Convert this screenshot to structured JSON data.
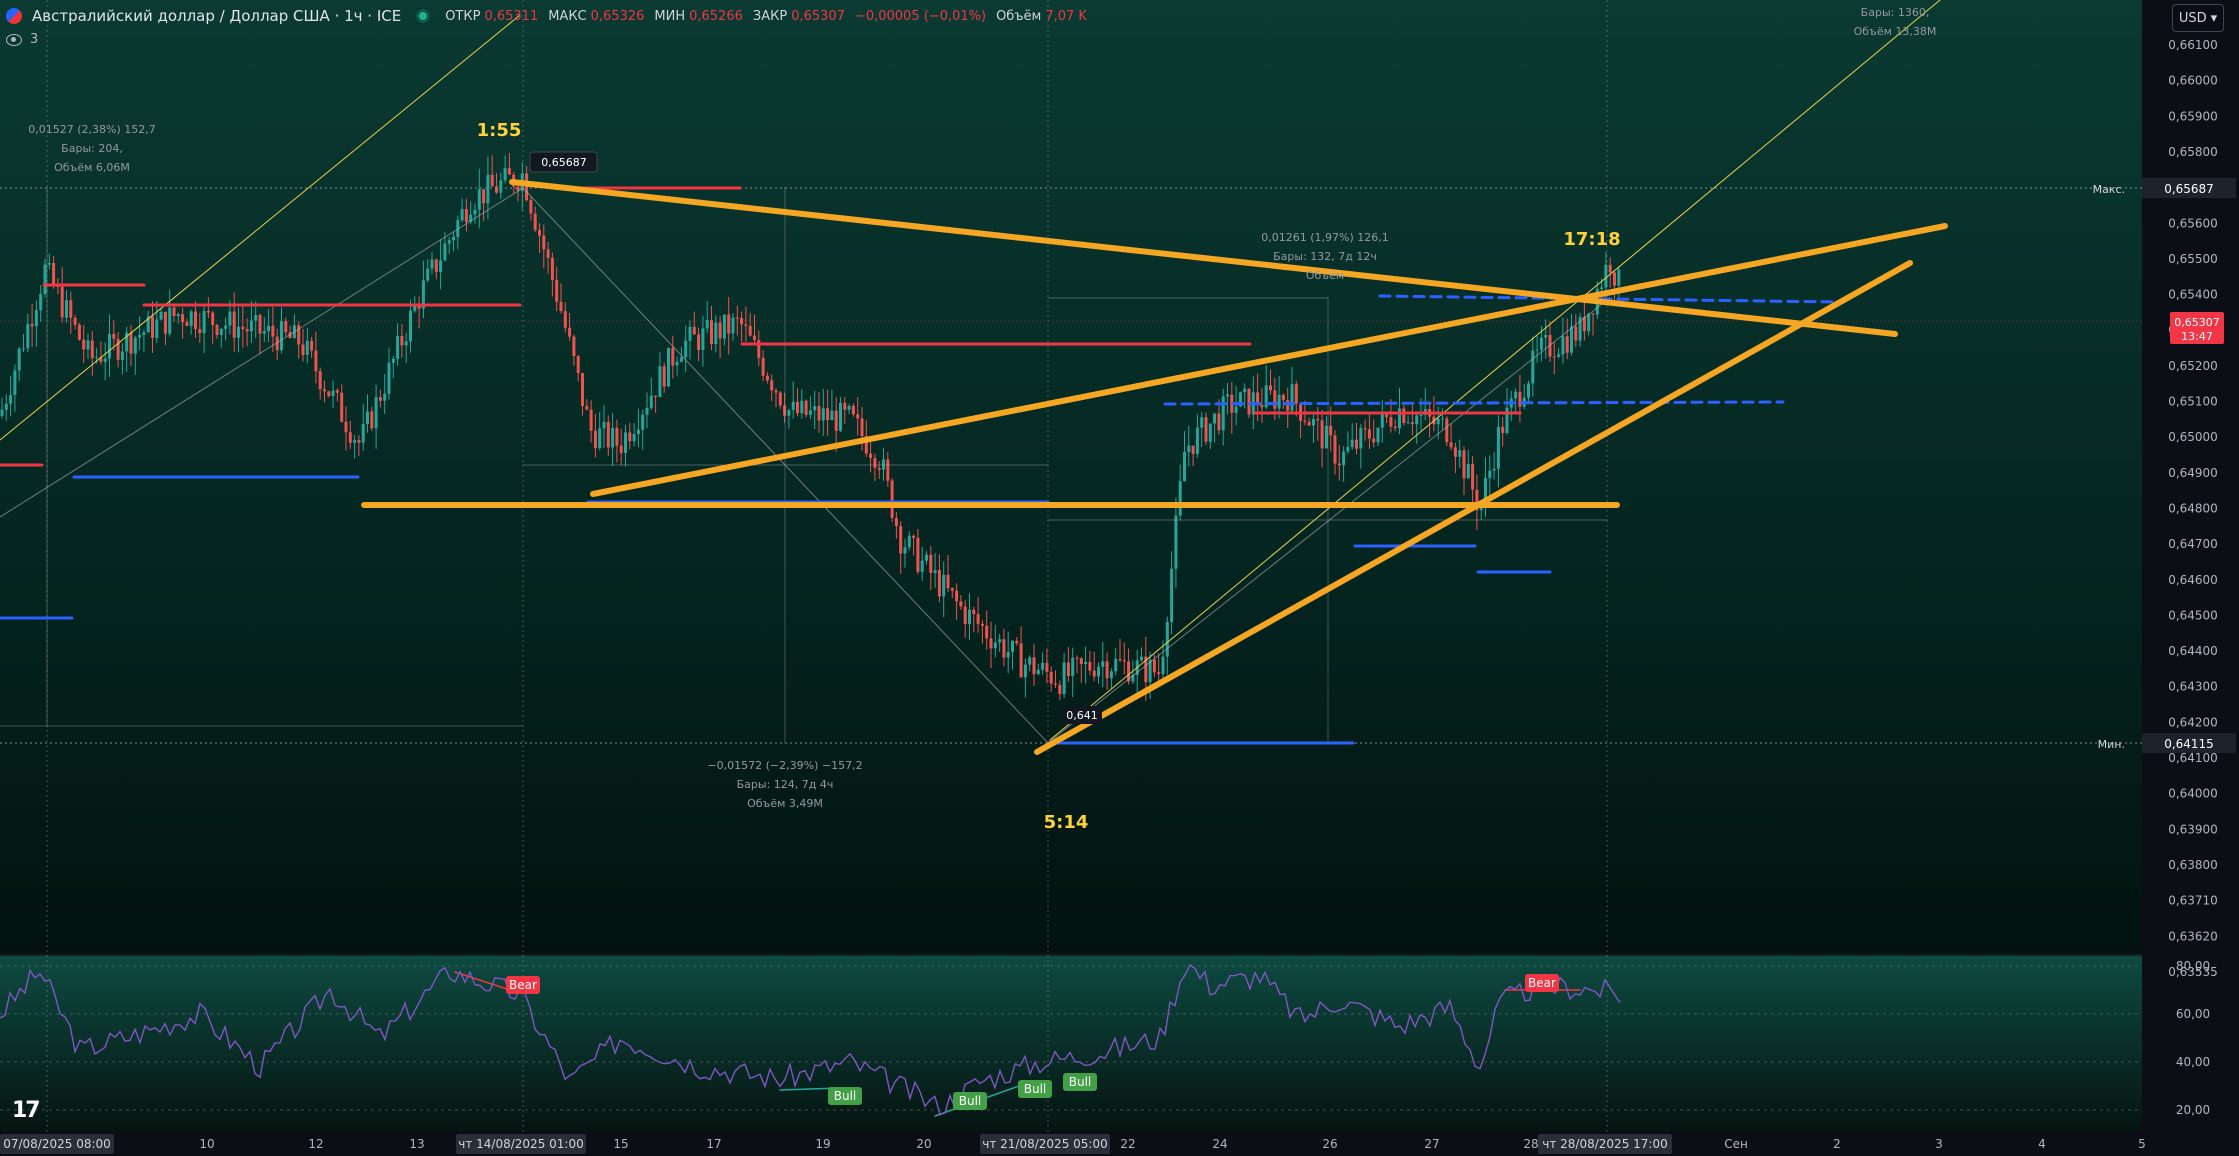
{
  "header": {
    "symbol_title": "Австралийский доллар / Доллар США · 1ч · ICE",
    "ohlc": [
      {
        "key": "ОТКР",
        "value": "0,65311"
      },
      {
        "key": "МАКС",
        "value": "0,65326"
      },
      {
        "key": "МИН",
        "value": "0,65266"
      },
      {
        "key": "ЗАКР",
        "value": "0,65307"
      },
      {
        "key": "",
        "value": "−0,00005 (−0,01%)"
      },
      {
        "key": "Объём",
        "value": "7,07 K"
      }
    ],
    "indicators_count": "3",
    "currency": "USD"
  },
  "price_axis": {
    "ticks": [
      "0,66100",
      "0,66000",
      "0,65900",
      "0,65800",
      "0,65700",
      "0,65600",
      "0,65500",
      "0,65400",
      "0,65300",
      "0,65200",
      "0,65100",
      "0,65000",
      "0,64900",
      "0,64800",
      "0,64700",
      "0,64600",
      "0,64500",
      "0,64400",
      "0,64300",
      "0,64200",
      "0,64100",
      "0,64000",
      "0,63900",
      "0,63800",
      "0,63710",
      "0,63620",
      "0,63535"
    ],
    "max_label": "Макс.",
    "max_value": "0,65687",
    "min_label": "Мин.",
    "min_value": "0,64115",
    "current_price": "0,65307",
    "countdown": "13:47"
  },
  "rsi_axis": {
    "ticks": [
      "80,00",
      "60,00",
      "40,00",
      "20,00"
    ]
  },
  "time_axis": {
    "ticks": [
      "10",
      "12",
      "13",
      "15",
      "17",
      "19",
      "20",
      "22",
      "24",
      "26",
      "27",
      "28",
      "Сен",
      "2",
      "3",
      "4",
      "5"
    ],
    "highlighted": [
      "07/08/2025  08:00",
      "чт 14/08/2025  01:00",
      "чт 21/08/2025  05:00",
      "чт 28/08/2025  17:00"
    ]
  },
  "annotations": {
    "time_labels": [
      "1:55",
      "5:14",
      "17:18"
    ],
    "high_price_box": "0,65687",
    "low_price_box": "0,641",
    "measure_1": [
      "0,01527 (2,38%) 152,7",
      "Бары: 204,",
      "Объём 6,06M"
    ],
    "measure_2": [
      "−0,01572 (−2,39%) −157,2",
      "Бары: 124, 7д 4ч",
      "Объём 3,49M"
    ],
    "measure_3": [
      "0,01261 (1,97%) 126,1",
      "Бары: 132, 7д 12ч",
      "Объём"
    ],
    "measure_4": [
      "Бары: 1360,",
      "Объём 13,38M"
    ],
    "rsi_tags": [
      "Bear",
      "Bear",
      "Bull",
      "Bull",
      "Bull",
      "Bull"
    ]
  },
  "colors": {
    "up": "#26a69a",
    "down": "#ef5350",
    "trendline": "#f5a623",
    "support": "#2962ff",
    "resistance": "#f23645",
    "rsi": "#7e57c2",
    "time_label": "#ffd23a"
  }
}
